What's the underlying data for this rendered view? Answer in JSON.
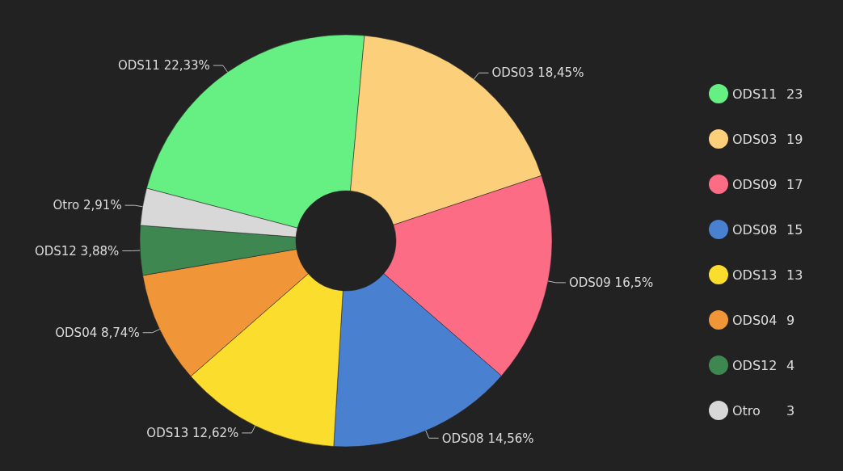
{
  "chart_data": {
    "type": "donut",
    "categories": [
      "ODS11",
      "ODS03",
      "ODS09",
      "ODS08",
      "ODS13",
      "ODS04",
      "ODS12",
      "Otro"
    ],
    "values": [
      22.33,
      18.45,
      16.5,
      14.56,
      12.62,
      8.74,
      3.88,
      2.91
    ],
    "value_labels": [
      "22,33%",
      "18,45%",
      "16,5%",
      "14,56%",
      "12,62%",
      "8,74%",
      "3,88%",
      "2,91%"
    ],
    "colors": [
      "#66f084",
      "#fccf7a",
      "#fc6d85",
      "#4a80d0",
      "#fbdd2e",
      "#f09538",
      "#3e8750",
      "#d8d8d8"
    ],
    "annotations": [
      "23",
      "19",
      "17",
      "15",
      "13",
      "9",
      "4",
      "3"
    ],
    "legend": "right"
  }
}
